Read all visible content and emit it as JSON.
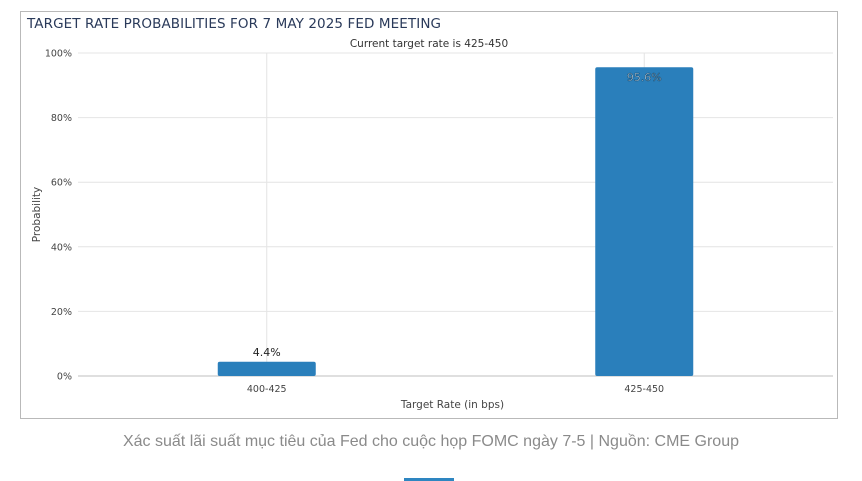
{
  "chart_data": {
    "type": "bar",
    "title": "TARGET RATE PROBABILITIES FOR 7 MAY 2025 FED MEETING",
    "subtitle": "Current target rate is 425-450",
    "xlabel": "Target Rate (in bps)",
    "ylabel": "Probability",
    "categories": [
      "400-425",
      "425-450"
    ],
    "values": [
      4.4,
      95.6
    ],
    "data_labels": [
      "4.4%",
      "95.6%"
    ],
    "ylim": [
      0,
      100
    ],
    "yticks": [
      0,
      20,
      40,
      60,
      80,
      100
    ],
    "ytick_labels": [
      "0%",
      "20%",
      "40%",
      "60%",
      "80%",
      "100%"
    ],
    "grid": true,
    "bar_color": "#2a7fbb"
  },
  "caption": "Xác suất lãi suất mục tiêu của Fed cho cuộc họp FOMC ngày 7-5 | Nguồn: CME Group"
}
